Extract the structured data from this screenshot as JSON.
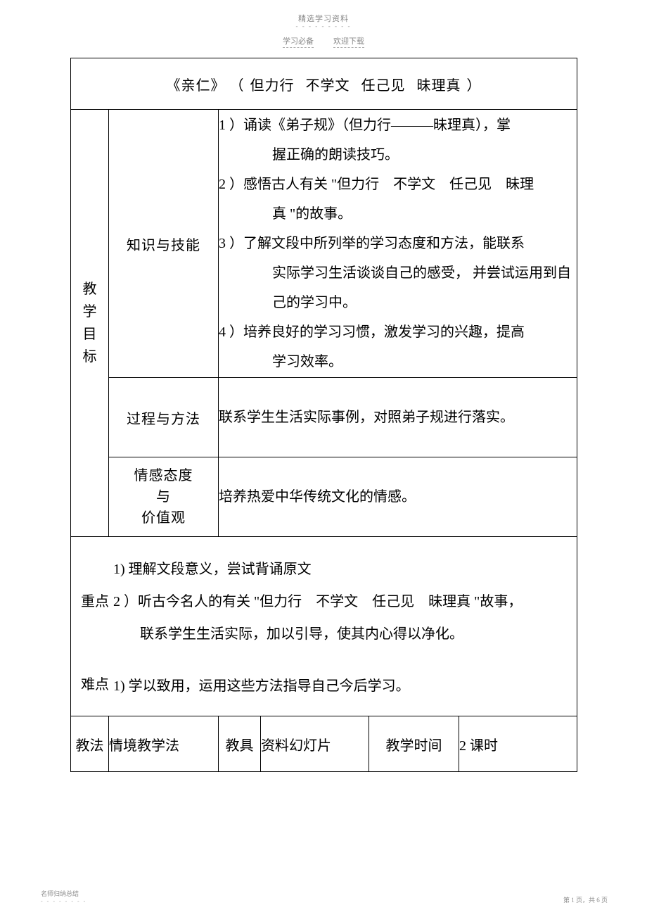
{
  "header": {
    "top_text": "精选学习资料",
    "sub_left": "学习必备",
    "sub_right": "欢迎下载"
  },
  "title": {
    "book": "《亲仁》",
    "paren_open": "（",
    "seg1": "但力行",
    "seg2": "不学文",
    "seg3": "任己见",
    "seg4": "昧理真",
    "paren_close": "）"
  },
  "goals": {
    "row_label": "教学目标",
    "knowledge": {
      "label": "知识与技能",
      "item1_a": "1 ）诵读《弟子规》（但力行———昧理真），掌",
      "item1_b": "握正确的朗读技巧。",
      "item2_a": "2 ）感悟古人有关 \"但力行　不学文　任己见　昧理",
      "item2_b": "真 \"的故事。",
      "item3_a": "3 ）了解文段中所列举的学习态度和方法，能联系",
      "item3_b": "实际学习生活谈谈自己的感受， 并尝试运用到自",
      "item3_c": "己的学习中。",
      "item4_a": "4 ）培养良好的学习习惯，激发学习的兴趣，提高",
      "item4_b": "学习效率。"
    },
    "process": {
      "label": "过程与方法",
      "text": "联系学生生活实际事例，对照弟子规进行落实。"
    },
    "values": {
      "label_l1": "情感态度",
      "label_l2": "与",
      "label_l3": "价值观",
      "text": "培养热爱中华传统文化的情感。"
    }
  },
  "keypoints": {
    "kp_label": "重点",
    "kp1": "1) 理解文段意义，尝试背诵原文",
    "kp2_a": "2 ）听古今名人的有关 \"但力行　不学文　任己见　昧理真 \"故事，",
    "kp2_b": "联系学生生活实际，加以引导，使其内心得以净化。",
    "diff_label": "难点",
    "diff1": "1) 学以致用，运用这些方法指导自己今后学习。"
  },
  "method": {
    "l1": "教法",
    "v1": "情境教学法",
    "l2": "教具",
    "v2": "资料幻灯片",
    "l3": "教学时间",
    "v3": "2 课时"
  },
  "footer": {
    "left": "名师归纳总结",
    "right": "第 1 页，共 6 页"
  }
}
